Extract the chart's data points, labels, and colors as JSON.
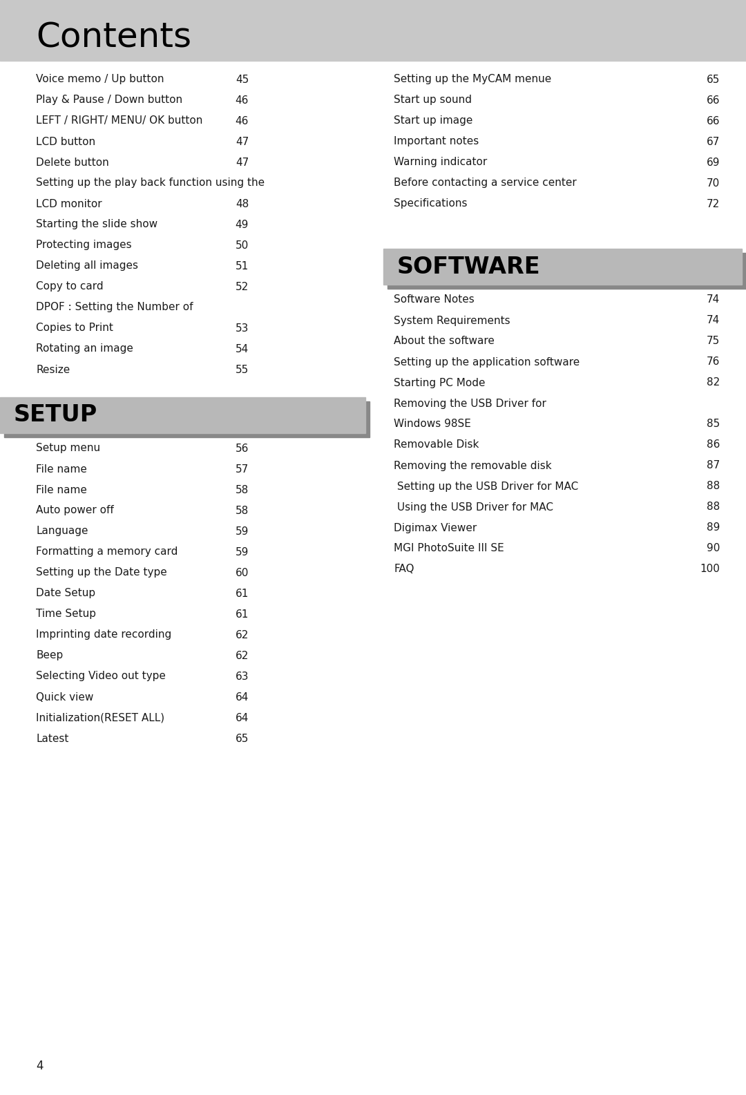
{
  "title": "Contents",
  "title_bg_color": "#c8c8c8",
  "title_font_size": 36,
  "page_bg_color": "#ffffff",
  "text_color": "#1a1a1a",
  "section_bg_color": "#b8b8b8",
  "section_shadow_color": "#888888",
  "body_font_size": 11.0,
  "page_number": "4",
  "left_col_items": [
    [
      "Voice memo / Up button",
      "45"
    ],
    [
      "Play & Pause / Down button",
      "46"
    ],
    [
      "LEFT / RIGHT/ MENU/ OK button",
      "46"
    ],
    [
      "LCD button",
      "47"
    ],
    [
      "Delete button",
      "47"
    ],
    [
      "Setting up the play back function using the",
      ""
    ],
    [
      "LCD monitor",
      "48"
    ],
    [
      "Starting the slide show",
      "49"
    ],
    [
      "Protecting images",
      "50"
    ],
    [
      "Deleting all images",
      "51"
    ],
    [
      "Copy to card",
      "52"
    ],
    [
      "DPOF : Setting the Number of",
      ""
    ],
    [
      "Copies to Print",
      "53"
    ],
    [
      "Rotating an image",
      "54"
    ],
    [
      "Resize",
      "55"
    ]
  ],
  "right_col_items_top": [
    [
      "Setting up the MyCAM menue",
      "65"
    ],
    [
      "Start up sound",
      "66"
    ],
    [
      "Start up image",
      "66"
    ],
    [
      "Important notes",
      "67"
    ],
    [
      "Warning indicator",
      "69"
    ],
    [
      "Before contacting a service center",
      "70"
    ],
    [
      "Specifications",
      "72"
    ]
  ],
  "section2_title": "SETUP",
  "section3_title": "SOFTWARE",
  "left_col_items2": [
    [
      "Setup menu",
      "56"
    ],
    [
      "File name",
      "57"
    ],
    [
      "File name",
      "58"
    ],
    [
      "Auto power off",
      "58"
    ],
    [
      "Language",
      "59"
    ],
    [
      "Formatting a memory card",
      "59"
    ],
    [
      "Setting up the Date type",
      "60"
    ],
    [
      "Date Setup",
      "61"
    ],
    [
      "Time Setup",
      "61"
    ],
    [
      "Imprinting date recording",
      "62"
    ],
    [
      "Beep",
      "62"
    ],
    [
      "Selecting Video out type",
      "63"
    ],
    [
      "Quick view",
      "64"
    ],
    [
      "Initialization(RESET ALL)",
      "64"
    ],
    [
      "Latest",
      "65"
    ]
  ],
  "right_col_items2": [
    [
      "Software Notes",
      "74"
    ],
    [
      "System Requirements",
      "74"
    ],
    [
      "About the software",
      "75"
    ],
    [
      "Setting up the application software",
      "76"
    ],
    [
      "Starting PC Mode",
      "82"
    ],
    [
      "Removing the USB Driver for",
      ""
    ],
    [
      "Windows 98SE",
      "85"
    ],
    [
      "Removable Disk",
      "86"
    ],
    [
      "Removing the removable disk",
      "87"
    ],
    [
      " Setting up the USB Driver for MAC",
      "88"
    ],
    [
      " Using the USB Driver for MAC",
      "88"
    ],
    [
      "Digimax Viewer",
      "89"
    ],
    [
      "MGI PhotoSuite III SE",
      "90"
    ],
    [
      "FAQ",
      "100"
    ]
  ]
}
